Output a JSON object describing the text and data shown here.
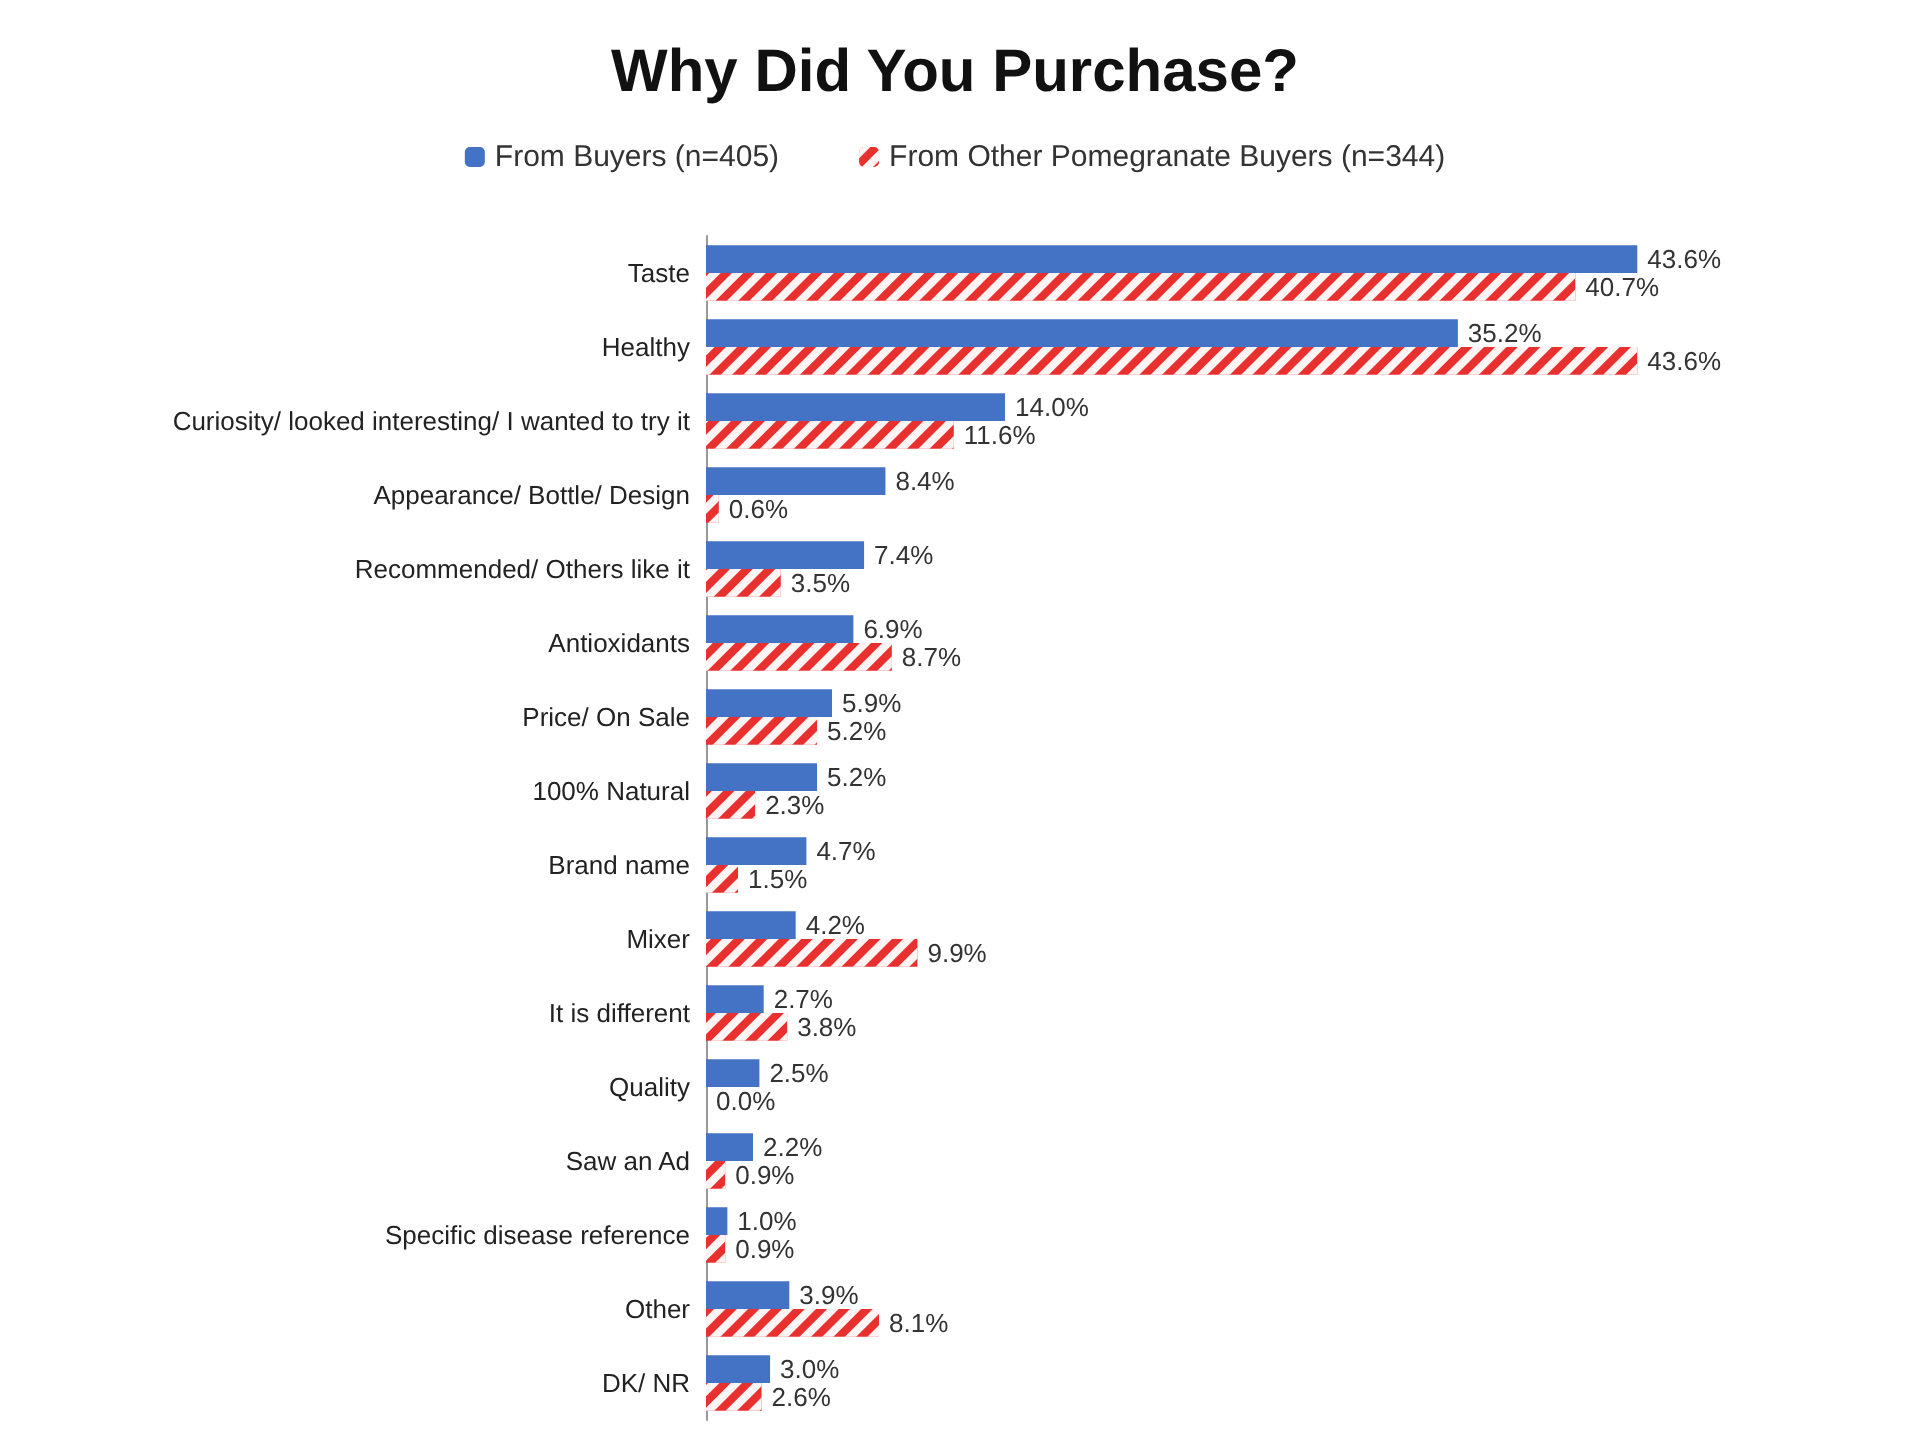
{
  "chart_data": {
    "type": "bar",
    "orientation": "horizontal",
    "title": "Why Did You Purchase?",
    "categories": [
      "Taste",
      "Healthy",
      "Curiosity/ looked interesting/ I wanted to try it",
      "Appearance/ Bottle/ Design",
      "Recommended/ Others like it",
      "Antioxidants",
      "Price/ On Sale",
      "100% Natural",
      "Brand name",
      "Mixer",
      "It is different",
      "Quality",
      "Saw an Ad",
      "Specific disease reference",
      "Other",
      "DK/ NR"
    ],
    "series": [
      {
        "name": "From Buyers (n=405)",
        "color": "#4472c4",
        "values": [
          43.6,
          35.2,
          14.0,
          8.4,
          7.4,
          6.9,
          5.9,
          5.2,
          4.7,
          4.2,
          2.7,
          2.5,
          2.2,
          1.0,
          3.9,
          3.0
        ],
        "value_labels": [
          "43.6%",
          "35.2%",
          "14.0%",
          "8.4%",
          "7.4%",
          "6.9%",
          "5.9%",
          "5.2%",
          "4.7%",
          "4.2%",
          "2.7%",
          "2.5%",
          "2.2%",
          "1.0%",
          "3.9%",
          "3.0%"
        ]
      },
      {
        "name": "From Other Pomegranate Buyers (n=344)",
        "color": "#e8312f",
        "values": [
          40.7,
          43.6,
          11.6,
          0.6,
          3.5,
          8.7,
          5.2,
          2.3,
          1.5,
          9.9,
          3.8,
          0.0,
          0.9,
          0.9,
          8.1,
          2.6
        ],
        "value_labels": [
          "40.7%",
          "43.6%",
          "11.6%",
          "0.6%",
          "3.5%",
          "8.7%",
          "5.2%",
          "2.3%",
          "1.5%",
          "9.9%",
          "3.8%",
          "0.0%",
          "0.9%",
          "0.9%",
          "8.1%",
          "2.6%"
        ]
      }
    ],
    "legend": "top",
    "grid": false
  }
}
